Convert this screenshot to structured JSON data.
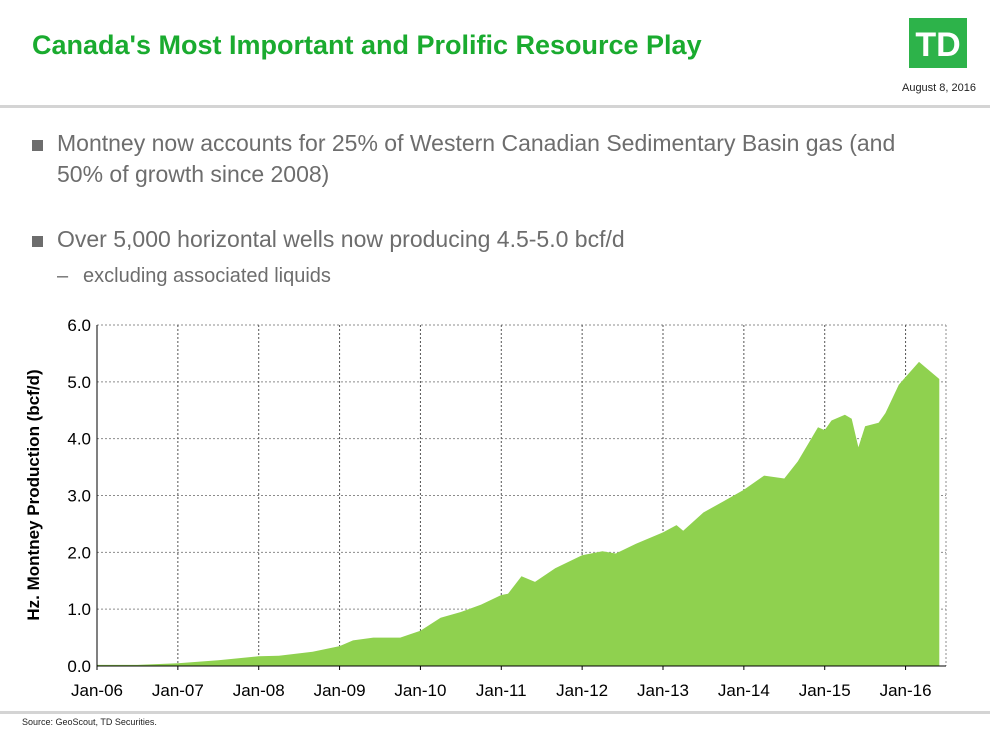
{
  "header": {
    "title": "Canada's Most Important and Prolific Resource Play",
    "logo_text": "TD",
    "date": "August 8, 2016"
  },
  "bullets": [
    {
      "text": "Montney now accounts for 25% of Western Canadian Sedimentary Basin gas (and 50% of growth since 2008)"
    },
    {
      "text": "Over 5,000 horizontal wells now producing 4.5-5.0 bcf/d"
    }
  ],
  "sub_bullet": {
    "dash": "–",
    "text": "excluding associated liquids"
  },
  "footer": {
    "source": "Source: GeoScout, TD Securities."
  },
  "colors": {
    "brand_green": "#2db34a",
    "title_green": "#1aab2f",
    "area_fill": "#8fd14f"
  },
  "chart_data": {
    "type": "area",
    "ylabel": "Hz. Montney Production (bcf/d)",
    "ylim": [
      0,
      6
    ],
    "yticks": [
      "0.0",
      "1.0",
      "2.0",
      "3.0",
      "4.0",
      "5.0",
      "6.0"
    ],
    "xticks": [
      "Jan-06",
      "Jan-07",
      "Jan-08",
      "Jan-09",
      "Jan-10",
      "Jan-11",
      "Jan-12",
      "Jan-13",
      "Jan-14",
      "Jan-15",
      "Jan-16"
    ],
    "grid": true,
    "series": [
      {
        "points": [
          [
            "2006-01",
            0.02
          ],
          [
            "2006-07",
            0.02
          ],
          [
            "2007-01",
            0.05
          ],
          [
            "2007-07",
            0.1
          ],
          [
            "2008-01",
            0.17
          ],
          [
            "2008-04",
            0.18
          ],
          [
            "2008-09",
            0.25
          ],
          [
            "2009-01",
            0.35
          ],
          [
            "2009-03",
            0.45
          ],
          [
            "2009-06",
            0.5
          ],
          [
            "2009-08",
            0.5
          ],
          [
            "2009-10",
            0.5
          ],
          [
            "2010-01",
            0.62
          ],
          [
            "2010-04",
            0.85
          ],
          [
            "2010-07",
            0.95
          ],
          [
            "2010-10",
            1.08
          ],
          [
            "2011-01",
            1.25
          ],
          [
            "2011-02",
            1.27
          ],
          [
            "2011-04",
            1.58
          ],
          [
            "2011-06",
            1.48
          ],
          [
            "2011-09",
            1.72
          ],
          [
            "2012-01",
            1.95
          ],
          [
            "2012-04",
            2.02
          ],
          [
            "2012-06",
            1.98
          ],
          [
            "2012-09",
            2.15
          ],
          [
            "2013-01",
            2.35
          ],
          [
            "2013-03",
            2.48
          ],
          [
            "2013-04",
            2.38
          ],
          [
            "2013-07",
            2.7
          ],
          [
            "2013-10",
            2.9
          ],
          [
            "2014-01",
            3.1
          ],
          [
            "2014-04",
            3.35
          ],
          [
            "2014-07",
            3.3
          ],
          [
            "2014-09",
            3.6
          ],
          [
            "2014-12",
            4.2
          ],
          [
            "2015-01",
            4.15
          ],
          [
            "2015-02",
            4.32
          ],
          [
            "2015-04",
            4.42
          ],
          [
            "2015-05",
            4.35
          ],
          [
            "2015-06",
            3.85
          ],
          [
            "2015-07",
            4.22
          ],
          [
            "2015-09",
            4.28
          ],
          [
            "2015-10",
            4.45
          ],
          [
            "2015-12",
            4.95
          ],
          [
            "2016-03",
            5.35
          ],
          [
            "2016-04",
            5.25
          ],
          [
            "2016-06",
            5.05
          ]
        ]
      }
    ]
  }
}
